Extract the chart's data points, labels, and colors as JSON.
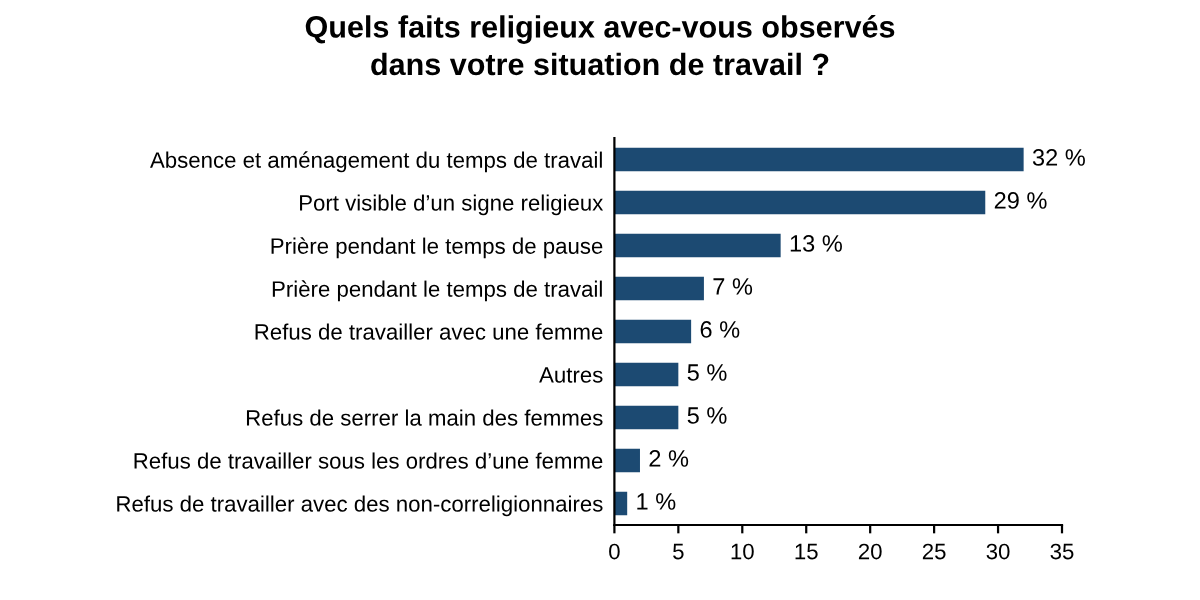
{
  "chart_data": {
    "type": "bar",
    "orientation": "horizontal",
    "title": "Quels faits religieux avec-vous observés\ndans votre situation de travail ?",
    "categories": [
      "Absence et aménagement du temps de travail",
      "Port visible d’un signe religieux",
      "Prière pendant le temps de pause",
      "Prière pendant le temps de travail",
      "Refus de travailler avec une femme",
      "Autres",
      "Refus de serrer la main des femmes",
      "Refus de travailler sous les ordres d’une femme",
      "Refus de travailler avec des non-correligionnaires"
    ],
    "values": [
      32,
      29,
      13,
      7,
      6,
      5,
      5,
      2,
      1
    ],
    "value_labels": [
      "32 %",
      "29 %",
      "13 %",
      "7 %",
      "6 %",
      "5 %",
      "5 %",
      "2 %",
      "1 %"
    ],
    "color": "#1c4a72",
    "xlim": [
      0,
      35
    ],
    "xticks": [
      0,
      5,
      10,
      15,
      20,
      25,
      30,
      35
    ],
    "grid": false
  }
}
